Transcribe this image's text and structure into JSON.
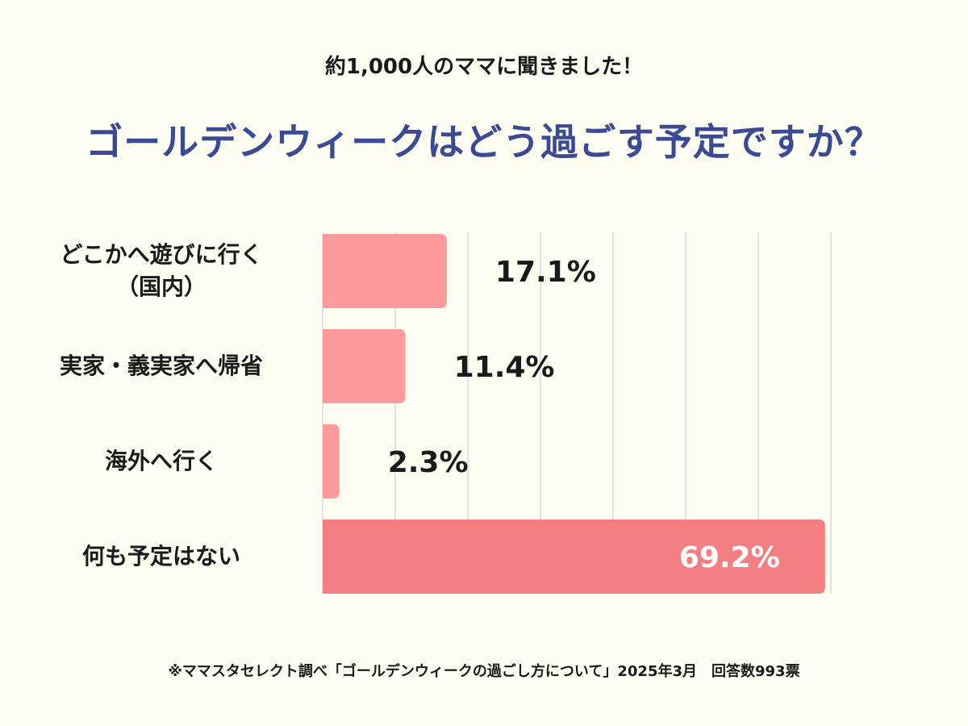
{
  "header": {
    "subtitle": "約1,000人のママに聞きました！",
    "title": "ゴールデンウィークはどう過ごす予定ですか？"
  },
  "footnote": "※ママスタセレクト調べ「ゴールデンウィークの過ごし方について」2025年3月　回答数993票",
  "colors": {
    "bar": "#ff9a9d",
    "bar_highlight": "#f47f82",
    "title": "#3a4a94",
    "grid": "#d9d9d9",
    "highlight_label": "#ffffff"
  },
  "chart_data": {
    "type": "bar",
    "orientation": "horizontal",
    "title": "ゴールデンウィークはどう過ごす予定ですか？",
    "categories": [
      [
        "どこかへ遊びに行く",
        "（国内）"
      ],
      [
        "実家・義実家へ帰省"
      ],
      [
        "海外へ行く"
      ],
      [
        "何も予定はない"
      ]
    ],
    "values": [
      17.1,
      11.4,
      2.3,
      69.2
    ],
    "value_labels": [
      "17.1%",
      "11.4%",
      "2.3%",
      "69.2%"
    ],
    "highlight_index": 3,
    "xlim": [
      0,
      70
    ],
    "grid": true,
    "unit": "%"
  }
}
